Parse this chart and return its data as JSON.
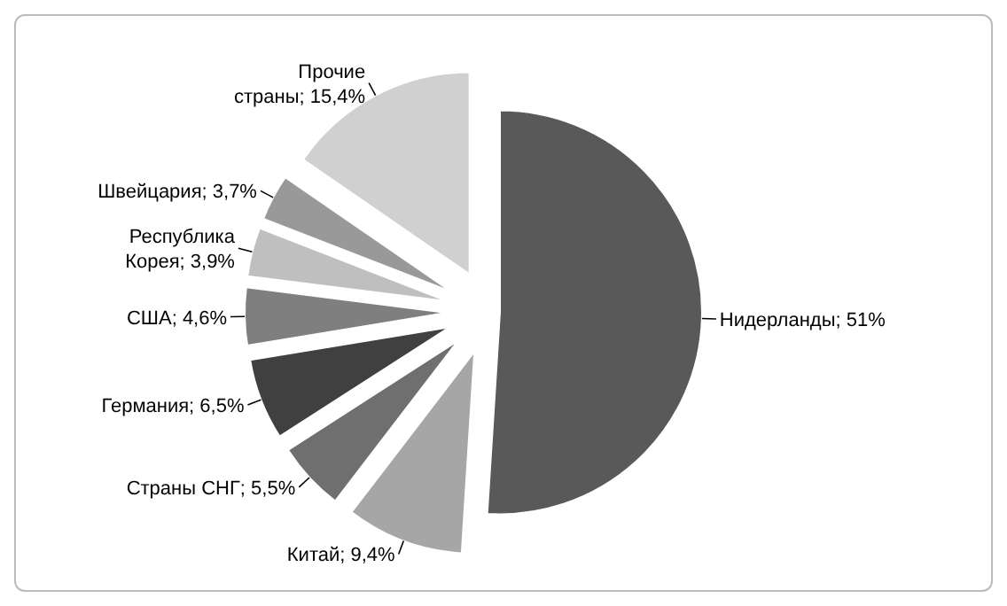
{
  "chart_data": {
    "type": "pie",
    "categories": [
      "Нидерланды",
      "Китай",
      "Страны СНГ",
      "Германия",
      "США",
      "Республика Корея",
      "Швейцария",
      "Прочие страны"
    ],
    "values": [
      51,
      9.4,
      5.5,
      6.5,
      4.6,
      3.9,
      3.7,
      15.4
    ],
    "value_labels": [
      "51%",
      "9,4%",
      "5,5%",
      "6,5%",
      "4,6%",
      "3,9%",
      "3,7%",
      "15,4%"
    ],
    "colors": [
      "#595959",
      "#a6a6a6",
      "#6f6f6f",
      "#404040",
      "#7f7f7f",
      "#bfbfbf",
      "#999999",
      "#d0d0d0"
    ],
    "legend": false
  }
}
